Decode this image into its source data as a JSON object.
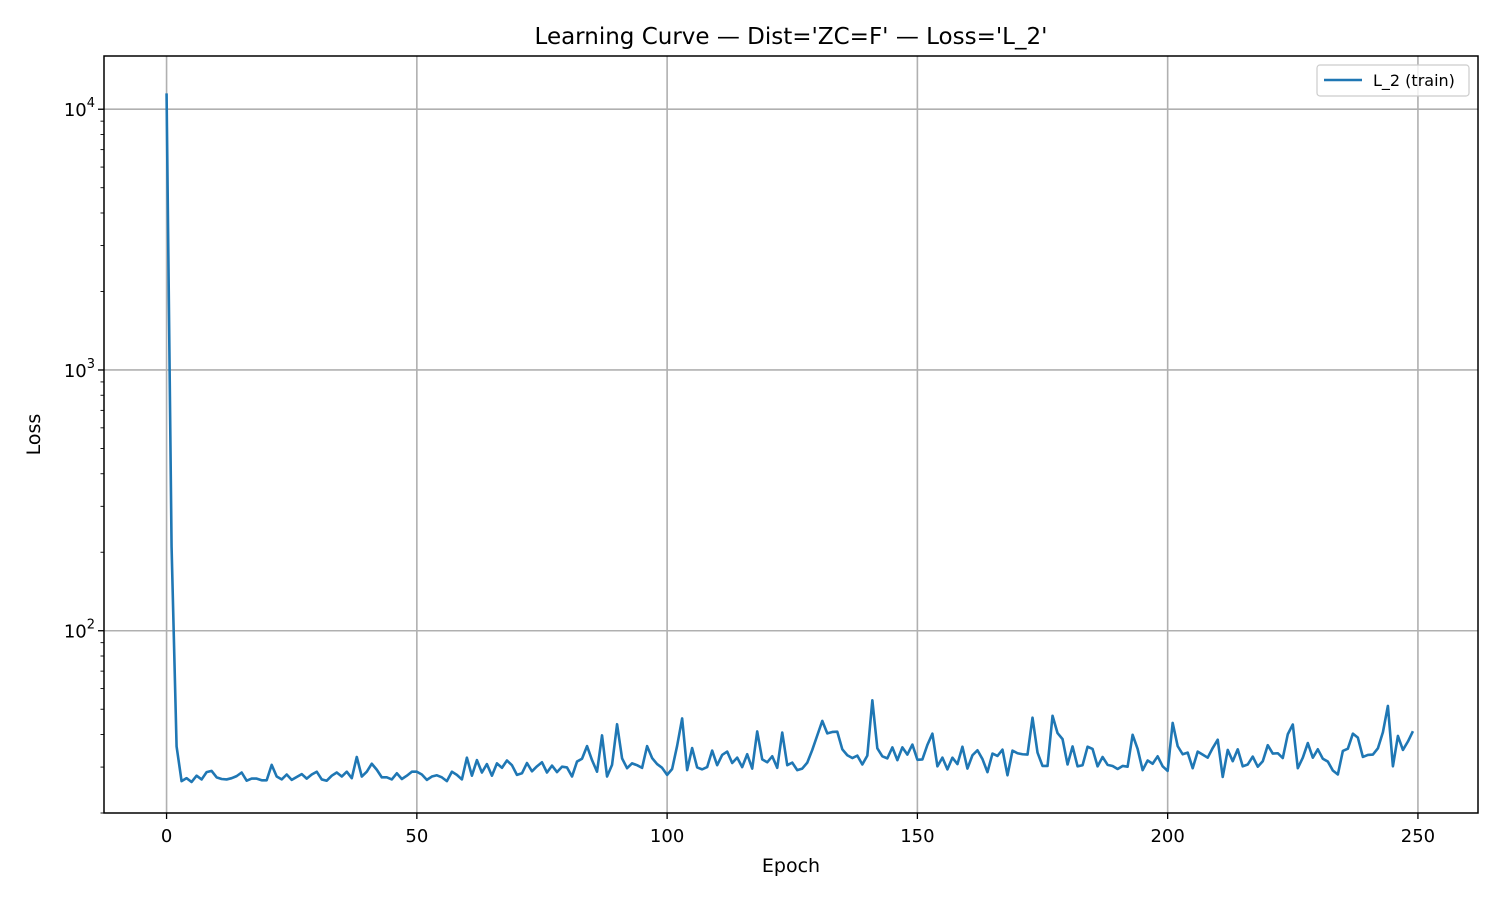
{
  "chart_data": {
    "type": "line",
    "title": "Learning Curve — Dist='ZC=F' — Loss='L_2'",
    "xlabel": "Epoch",
    "ylabel": "Loss",
    "yscale": "log",
    "xlim": [
      -12.5,
      262
    ],
    "ylim": [
      20,
      16000
    ],
    "xticks": [
      0,
      50,
      100,
      150,
      200,
      250
    ],
    "xtick_labels": [
      "0",
      "50",
      "100",
      "150",
      "200",
      "250"
    ],
    "yticks": [
      100,
      1000,
      10000
    ],
    "ytick_labels": [
      {
        "base": "10",
        "exp": "2"
      },
      {
        "base": "10",
        "exp": "3"
      },
      {
        "base": "10",
        "exp": "4"
      }
    ],
    "grid": true,
    "legend": {
      "position": "top-right",
      "entries": [
        "L_2 (train)"
      ]
    },
    "colors": {
      "L_2 (train)": "#1f77b4"
    },
    "series": [
      {
        "name": "L_2 (train)",
        "x": [
          0,
          1,
          2,
          3,
          4,
          5,
          6,
          7,
          8,
          9,
          10,
          11,
          12,
          13,
          14,
          15,
          16,
          17,
          18,
          19,
          20,
          21,
          22,
          23,
          24,
          25,
          26,
          27,
          28,
          29,
          30,
          31,
          32,
          33,
          34,
          35,
          36,
          37,
          38,
          39,
          40,
          41,
          42,
          43,
          44,
          45,
          46,
          47,
          48,
          49,
          50,
          51,
          52,
          53,
          54,
          55,
          56,
          57,
          58,
          59,
          60,
          61,
          62,
          63,
          64,
          65,
          66,
          67,
          68,
          69,
          70,
          71,
          72,
          73,
          74,
          75,
          76,
          77,
          78,
          79,
          80,
          81,
          82,
          83,
          84,
          85,
          86,
          87,
          88,
          89,
          90,
          91,
          92,
          93,
          94,
          95,
          96,
          97,
          98,
          99,
          100,
          101,
          102,
          103,
          104,
          105,
          106,
          107,
          108,
          109,
          110,
          111,
          112,
          113,
          114,
          115,
          116,
          117,
          118,
          119,
          120,
          121,
          122,
          123,
          124,
          125,
          126,
          127,
          128,
          129,
          130,
          131,
          132,
          133,
          134,
          135,
          136,
          137,
          138,
          139,
          140,
          141,
          142,
          143,
          144,
          145,
          146,
          147,
          148,
          149,
          150,
          151,
          152,
          153,
          154,
          155,
          156,
          157,
          158,
          159,
          160,
          161,
          162,
          163,
          164,
          165,
          166,
          167,
          168,
          169,
          170,
          171,
          172,
          173,
          174,
          175,
          176,
          177,
          178,
          179,
          180,
          181,
          182,
          183,
          184,
          185,
          186,
          187,
          188,
          189,
          190,
          191,
          192,
          193,
          194,
          195,
          196,
          197,
          198,
          199,
          200,
          201,
          202,
          203,
          204,
          205,
          206,
          207,
          208,
          209,
          210,
          211,
          212,
          213,
          214,
          215,
          216,
          217,
          218,
          219,
          220,
          221,
          222,
          223,
          224,
          225,
          226,
          227,
          228,
          229,
          230,
          231,
          232,
          233,
          234,
          235,
          236,
          237,
          238,
          239,
          240,
          241,
          242,
          243,
          244,
          245,
          246,
          247,
          248,
          249
        ],
        "y": [
          11500,
          210,
          36,
          26.5,
          27.2,
          26.3,
          27.8,
          26.9,
          28.7,
          29,
          27.4,
          27,
          26.9,
          27.2,
          27.7,
          28.6,
          26.6,
          27.1,
          27.1,
          26.7,
          26.7,
          30.6,
          27.6,
          26.9,
          28.1,
          26.8,
          27.5,
          28.2,
          27.1,
          28.1,
          28.8,
          26.9,
          26.6,
          27.8,
          28.6,
          27.6,
          28.8,
          27.2,
          32.8,
          27.6,
          28.8,
          30.9,
          29.3,
          27.4,
          27.4,
          26.9,
          28.4,
          27,
          27.8,
          28.8,
          28.8,
          28.1,
          26.8,
          27.6,
          27.9,
          27.4,
          26.5,
          28.8,
          28,
          26.9,
          32.6,
          27.8,
          31.9,
          28.6,
          30.8,
          27.8,
          31,
          29.8,
          31.8,
          30.5,
          28,
          28.4,
          31.1,
          28.9,
          30.2,
          31.3,
          28.6,
          30.4,
          28.7,
          30.1,
          29.9,
          27.6,
          31.5,
          32.3,
          36.1,
          31.9,
          28.8,
          39.7,
          27.6,
          30.6,
          43.8,
          32.4,
          29.7,
          31,
          30.5,
          29.8,
          36.1,
          32.5,
          30.8,
          29.8,
          28,
          29.5,
          36.2,
          46.1,
          29.2,
          35.5,
          29.9,
          29.4,
          30,
          34.7,
          30.5,
          33.4,
          34.4,
          31.1,
          32.6,
          30,
          33.6,
          29.6,
          41.1,
          32.1,
          31.3,
          33,
          29.8,
          40.7,
          30.5,
          31.2,
          29.2,
          29.6,
          31.2,
          34.9,
          39.7,
          45.1,
          40.4,
          40.9,
          41,
          35.1,
          33.3,
          32.5,
          33.2,
          30.7,
          33.2,
          54.1,
          35.4,
          33,
          32.4,
          35.7,
          31.9,
          35.7,
          33.5,
          36.6,
          32,
          32.1,
          36.5,
          40.3,
          30.2,
          32.6,
          29.4,
          32.6,
          30.8,
          35.9,
          29.6,
          33.3,
          34.8,
          32.2,
          28.7,
          33.8,
          33.1,
          35,
          27.9,
          34.7,
          33.9,
          33.6,
          33.5,
          46.4,
          34.1,
          30.3,
          30.3,
          47.2,
          40.5,
          38.4,
          30.7,
          36,
          30.2,
          30.5,
          35.9,
          35.2,
          30.2,
          32.8,
          30.6,
          30.3,
          29.5,
          30.3,
          30.1,
          39.9,
          35.2,
          29.2,
          31.8,
          30.9,
          33,
          30.2,
          29,
          44.3,
          36.1,
          33.6,
          34.1,
          29.7,
          34.4,
          33.5,
          32.6,
          35.5,
          38.2,
          27.5,
          34.9,
          31.6,
          35.1,
          30.2,
          30.7,
          32.9,
          30.1,
          31.6,
          36.4,
          33.8,
          33.9,
          32.5,
          40.1,
          43.7,
          29.7,
          32.6,
          37.1,
          32.6,
          35.1,
          32.3,
          31.5,
          29.1,
          28.1,
          34.6,
          35.3,
          40.3,
          38.9,
          32.8,
          33.4,
          33.5,
          35.4,
          40.8,
          51.5,
          30.2,
          39.5,
          34.9,
          37.6,
          41.2
        ]
      }
    ]
  }
}
